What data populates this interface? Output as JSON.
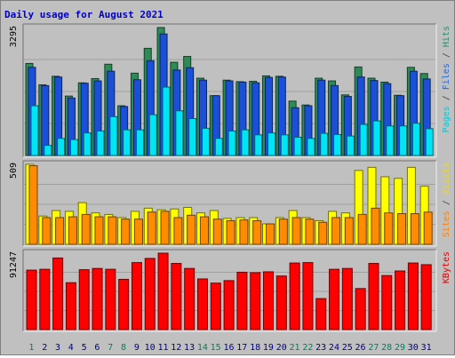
{
  "chart_data": {
    "type": "bar",
    "title": "Daily usage for August 2021",
    "categories": [
      "1",
      "2",
      "3",
      "4",
      "5",
      "6",
      "7",
      "8",
      "9",
      "10",
      "11",
      "12",
      "13",
      "14",
      "15",
      "16",
      "17",
      "18",
      "19",
      "20",
      "21",
      "22",
      "23",
      "24",
      "25",
      "26",
      "27",
      "28",
      "29",
      "30",
      "31"
    ],
    "day_label_colors": [
      "#00805c",
      "#00008b",
      "#00008b",
      "#00008b",
      "#00008b",
      "#00008b",
      "#00805c",
      "#00805c",
      "#00008b",
      "#00008b",
      "#00008b",
      "#00008b",
      "#00008b",
      "#00805c",
      "#00805c",
      "#00008b",
      "#00008b",
      "#00008b",
      "#00008b",
      "#00008b",
      "#00805c",
      "#00805c",
      "#00008b",
      "#00008b",
      "#00008b",
      "#00008b",
      "#00805c",
      "#00805c",
      "#00805c",
      "#00008b",
      "#00008b"
    ],
    "panels": [
      {
        "id": "hits",
        "max_label": "3295",
        "ymax": 3295,
        "legend": [
          {
            "text": "Pages",
            "color": "#00c8d8"
          },
          {
            "text": " / ",
            "color": "#404040"
          },
          {
            "text": "Files",
            "color": "#2468d8"
          },
          {
            "text": " / ",
            "color": "#404040"
          },
          {
            "text": "Hits",
            "color": "#2e8b6a"
          }
        ],
        "series": [
          {
            "name": "Hits",
            "color": "#2e8b57",
            "values": [
              2370,
              1820,
              2040,
              1530,
              1870,
              1980,
              2350,
              1280,
              2120,
              2760,
              3295,
              2400,
              2550,
              1990,
              1540,
              1940,
              1900,
              1910,
              2050,
              2040,
              1400,
              1300,
              1990,
              1920,
              1560,
              2280,
              1990,
              1890,
              1550,
              2270,
              2110
            ]
          },
          {
            "name": "Files",
            "color": "#1a4fd8",
            "values": [
              2270,
              1800,
              2020,
              1480,
              1860,
              1920,
              2170,
              1260,
              1950,
              2440,
              3130,
              2200,
              2260,
              1940,
              1540,
              1920,
              1890,
              1870,
              2010,
              2020,
              1230,
              1280,
              1940,
              1800,
              1520,
              2020,
              1930,
              1850,
              1540,
              2170,
              1970
            ]
          },
          {
            "name": "Pages",
            "color": "#00e5f5",
            "values": [
              1280,
              260,
              440,
              410,
              580,
              630,
              1000,
              660,
              660,
              1050,
              1760,
              1150,
              950,
              700,
              440,
              630,
              660,
              530,
              580,
              530,
              470,
              440,
              570,
              540,
              500,
              800,
              890,
              760,
              760,
              830,
              690
            ]
          }
        ]
      },
      {
        "id": "visits",
        "max_label": "509",
        "ymax": 509,
        "legend": [
          {
            "text": "Sites",
            "color": "#ff8000"
          },
          {
            "text": " / ",
            "color": "#404040"
          },
          {
            "text": "Visits",
            "color": "#e8d830"
          }
        ],
        "series": [
          {
            "name": "Visits",
            "color": "#ffff00",
            "values": [
              509,
              180,
              215,
              210,
              265,
              200,
              190,
              170,
              210,
              230,
              220,
              225,
              235,
              200,
              215,
              165,
              170,
              170,
              130,
              170,
              215,
              170,
              150,
              210,
              200,
              470,
              490,
              430,
              420,
              490,
              370
            ]
          },
          {
            "name": "Sites",
            "color": "#ff8c00",
            "values": [
              500,
              170,
              170,
              175,
              190,
              175,
              175,
              160,
              160,
              205,
              210,
              170,
              185,
              175,
              160,
              150,
              155,
              150,
              130,
              160,
              170,
              160,
              140,
              170,
              170,
              190,
              230,
              200,
              195,
              195,
              205
            ]
          }
        ]
      },
      {
        "id": "kbytes",
        "max_label": "91247",
        "ymax": 91247,
        "legend": [
          {
            "text": "KBytes",
            "color": "#e00000"
          }
        ],
        "series": [
          {
            "name": "KBytes",
            "color": "#ff0000",
            "values": [
              71000,
              72000,
              85500,
              56000,
              71500,
              73000,
              72000,
              60000,
              80000,
              85000,
              91247,
              79000,
              73000,
              60500,
              55500,
              58500,
              68500,
              68000,
              69000,
              64000,
              79500,
              80000,
              37000,
              72000,
              73000,
              49000,
              79000,
              64500,
              70000,
              79500,
              77500
            ]
          }
        ]
      }
    ]
  }
}
